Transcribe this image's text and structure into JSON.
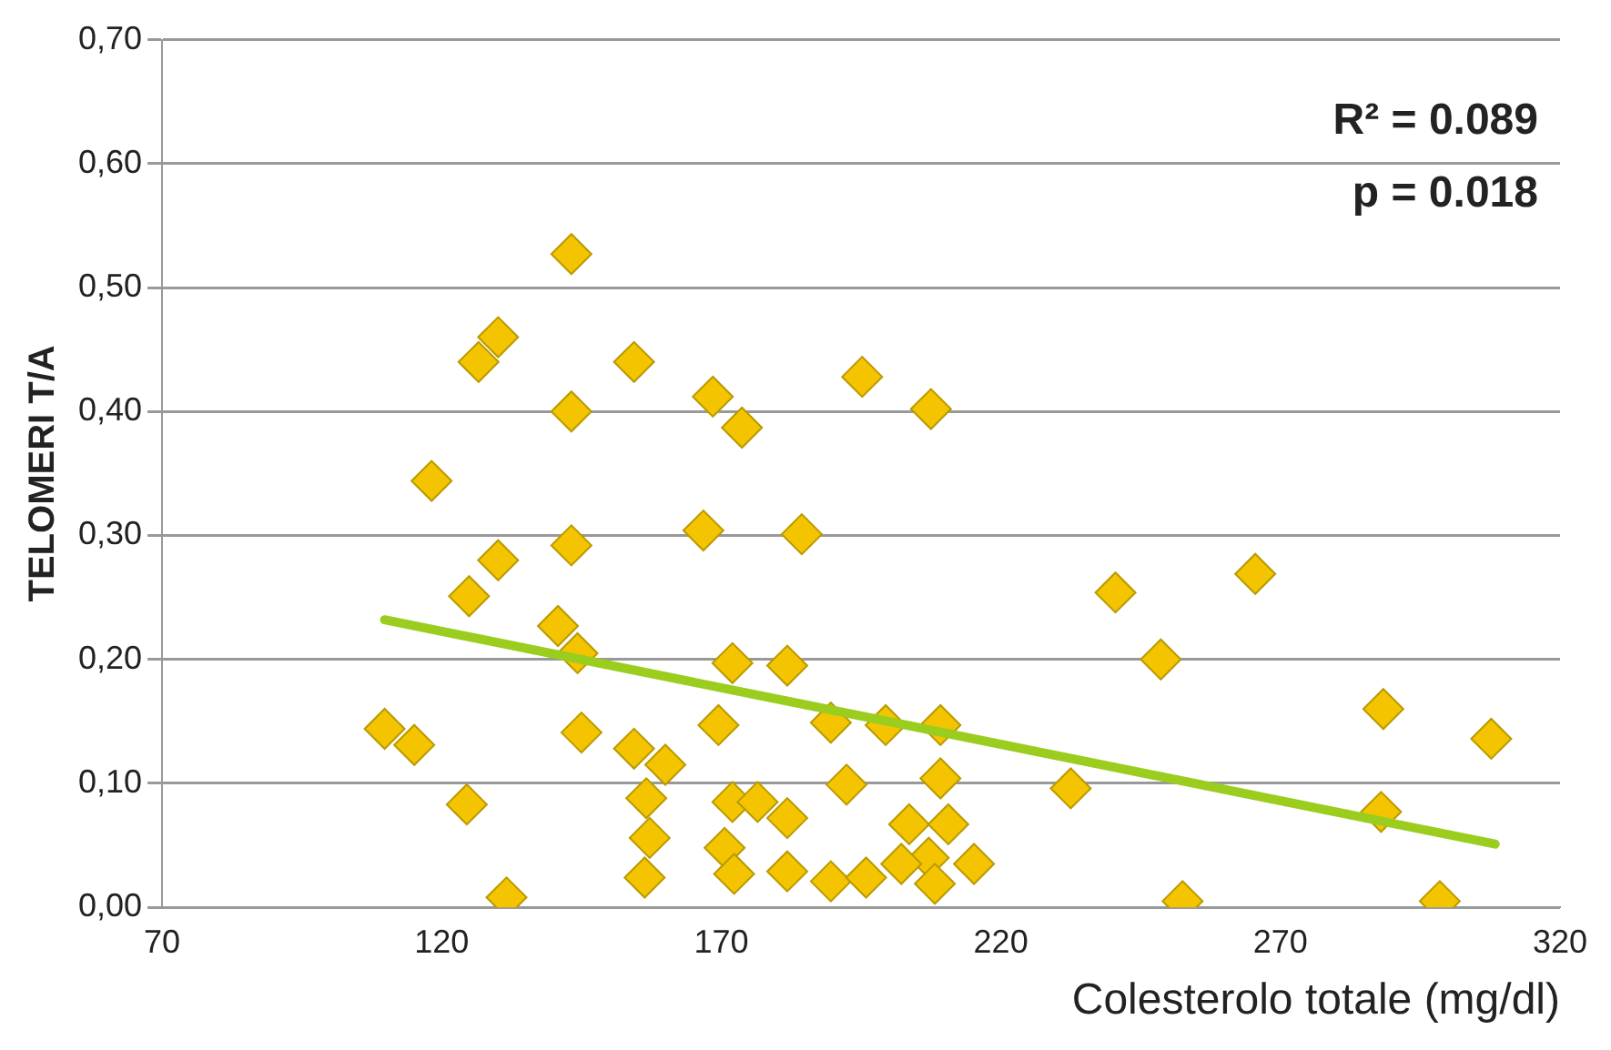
{
  "chart_data": {
    "type": "scatter",
    "xlabel": "Colesterolo totale (mg/dl)",
    "ylabel": "TELOMERI T/A",
    "annotations": [
      "R² = 0.089",
      "p = 0.018"
    ],
    "xlim": [
      70,
      320
    ],
    "xticks": [
      70,
      120,
      170,
      220,
      270,
      320
    ],
    "ylim": [
      0,
      0.7
    ],
    "yticks": [
      {
        "value": 0,
        "label": "0,00"
      },
      {
        "value": 0.1,
        "label": "0,10"
      },
      {
        "value": 0.2,
        "label": "0,20"
      },
      {
        "value": 0.3,
        "label": "0,30"
      },
      {
        "value": 0.4,
        "label": "0,40"
      },
      {
        "value": 0.5,
        "label": "0,50"
      },
      {
        "value": 0.6,
        "label": "0,60"
      },
      {
        "value": 0.7,
        "label": "0,70"
      }
    ],
    "grid": "y",
    "series": [
      {
        "marker": "diamond",
        "color": "#f5c400",
        "x": [
          143.2,
          130.1,
          126.6,
          154.4,
          143.2,
          118.2,
          130.1,
          124.9,
          143.2,
          140.8,
          144.3,
          109.8,
          115.1,
          145,
          154.4,
          124.5,
          131.6,
          156.6,
          157.2,
          156.3,
          168.5,
          173.7,
          195.2,
          207.5,
          166.8,
          184.4,
          172,
          181.8,
          169.5,
          189.6,
          199.4,
          209.2,
          160,
          192.4,
          209.2,
          172,
          176.5,
          181.8,
          170.6,
          172.3,
          181.8,
          189.6,
          195.9,
          203.6,
          210.6,
          207.1,
          202.2,
          215.2,
          208.2,
          240.5,
          265.5,
          248.6,
          288.4,
          307.7,
          232.5,
          288,
          252.5,
          298.5
        ],
        "values": [
          0.527,
          0.46,
          0.44,
          0.44,
          0.4,
          0.344,
          0.28,
          0.251,
          0.292,
          0.227,
          0.205,
          0.144,
          0.131,
          0.141,
          0.128,
          0.083,
          0.008,
          0.088,
          0.056,
          0.024,
          0.412,
          0.387,
          0.428,
          0.402,
          0.304,
          0.301,
          0.197,
          0.195,
          0.147,
          0.149,
          0.147,
          0.147,
          0.115,
          0.099,
          0.104,
          0.085,
          0.085,
          0.072,
          0.048,
          0.027,
          0.029,
          0.021,
          0.024,
          0.067,
          0.067,
          0.04,
          0.035,
          0.035,
          0.019,
          0.254,
          0.269,
          0.2,
          0.16,
          0.136,
          0.096,
          0.077,
          0.005,
          0.005
        ]
      },
      {
        "type": "line",
        "marker": "none",
        "color": "#9acd1e",
        "x": [
          109.8,
          308.4
        ],
        "values": [
          0.232,
          0.051
        ]
      }
    ]
  }
}
